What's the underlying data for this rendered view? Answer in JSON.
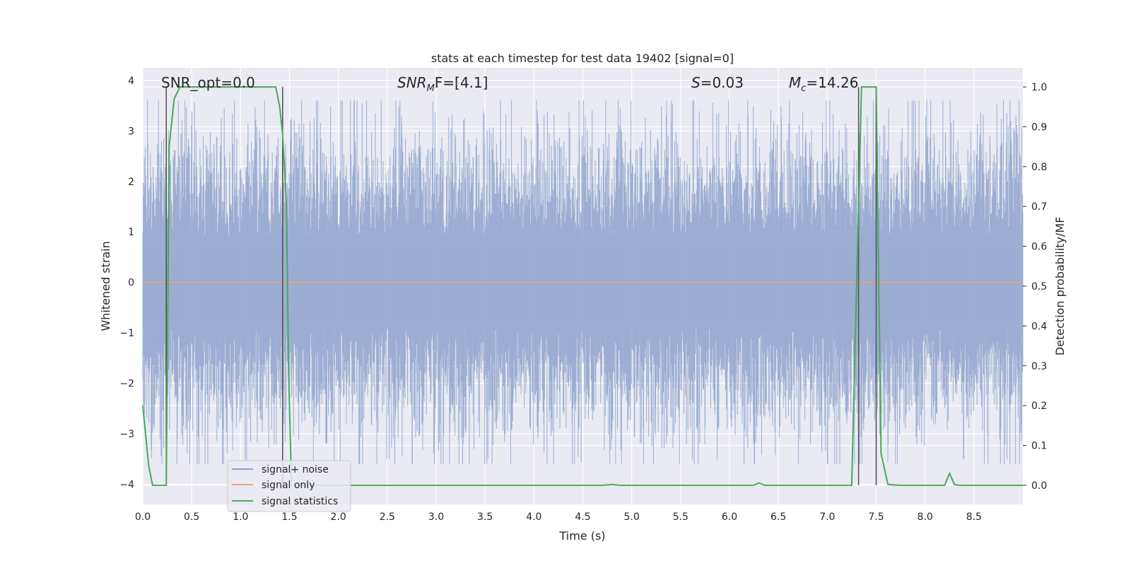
{
  "chart_data": {
    "type": "line",
    "title": "stats at each timestep for test data 19402 [signal=0]",
    "xlabel": "Time (s)",
    "ylabel_left": "Whitened strain",
    "ylabel_right": "Detection probability/MF",
    "xlim": [
      0.0,
      9.0
    ],
    "ylim_left": [
      -4.4,
      4.25
    ],
    "ylim_right": [
      -0.048,
      1.048
    ],
    "x_ticks": [
      "0.0",
      "0.5",
      "1.0",
      "1.5",
      "2.0",
      "2.5",
      "3.0",
      "3.5",
      "4.0",
      "4.5",
      "5.0",
      "5.5",
      "6.0",
      "6.5",
      "7.0",
      "7.5",
      "8.0",
      "8.5"
    ],
    "y_ticks_left": [
      "4",
      "3",
      "2",
      "1",
      "0",
      "−1",
      "−2",
      "−3",
      "−4"
    ],
    "y_ticks_right": [
      "1.0",
      "0.9",
      "0.8",
      "0.7",
      "0.6",
      "0.5",
      "0.4",
      "0.3",
      "0.2",
      "0.1",
      "0.0"
    ],
    "grid": true,
    "legend_position": "lower-left",
    "annotations": {
      "snr_opt": "SNR_opt=0.0",
      "snr_mf_main": "SNR",
      "snr_mf_sub": "M",
      "snr_mf_rest": "F=[4.1]",
      "s_main": "S",
      "s_rest": "=0.03",
      "mc_main": "M",
      "mc_sub": "c",
      "mc_rest": "=14.26"
    },
    "vertical_markers_x": [
      0.24,
      1.43,
      7.32,
      7.5
    ],
    "series": [
      {
        "name": "signal+ noise",
        "color": "#8da2cc",
        "description_values": "whitened noise, roughly within [-3.6, 3.6]"
      },
      {
        "name": "signal only",
        "color": "#e8a07f",
        "values_constant": 0.0
      },
      {
        "name": "signal statistics",
        "color": "#4aa85a",
        "x": [
          0.0,
          0.06,
          0.1,
          0.24,
          0.27,
          0.32,
          0.38,
          0.45,
          0.8,
          1.36,
          1.4,
          1.43,
          1.47,
          1.49,
          1.52,
          1.6,
          2.0,
          4.7,
          4.8,
          4.88,
          5.0,
          6.25,
          6.3,
          6.36,
          6.5,
          7.25,
          7.3,
          7.35,
          7.4,
          7.5,
          7.55,
          7.62,
          7.75,
          8.2,
          8.25,
          8.3,
          8.35,
          8.5,
          9.0
        ],
        "y": [
          0.2,
          0.05,
          0.0,
          0.0,
          0.85,
          0.97,
          1.0,
          1.0,
          1.0,
          1.0,
          0.95,
          0.88,
          0.7,
          0.3,
          0.0,
          0.0,
          0.0,
          0.0,
          0.002,
          0.0,
          0.0,
          0.0,
          0.006,
          0.0,
          0.0,
          0.0,
          0.5,
          1.0,
          1.0,
          1.0,
          0.08,
          0.002,
          0.0,
          0.0,
          0.03,
          0.002,
          0.0,
          0.0,
          0.0
        ]
      }
    ]
  },
  "legend": {
    "items": [
      {
        "label": "signal+ noise",
        "color": "#8da2cc"
      },
      {
        "label": "signal only",
        "color": "#e8a07f"
      },
      {
        "label": "signal statistics",
        "color": "#4aa85a"
      }
    ]
  }
}
